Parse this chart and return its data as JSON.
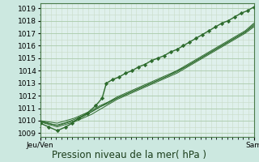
{
  "title": "Pression niveau de la mer( hPa )",
  "xlabel_left": "Jeu/Ven",
  "xlabel_right": "Sam",
  "ylabel_values": [
    1009,
    1010,
    1011,
    1012,
    1013,
    1014,
    1015,
    1016,
    1017,
    1018,
    1019
  ],
  "ylim": [
    1008.7,
    1019.4
  ],
  "xlim": [
    0,
    1
  ],
  "bg_outer": "#cce8e0",
  "bg_inner": "#dff0ec",
  "grid_major_color": "#aacaaa",
  "grid_minor_color": "#c8dcc8",
  "line_color": "#2d6b2d",
  "lines": [
    [
      0.0,
      1009.8,
      0.04,
      1009.5,
      0.08,
      1009.2,
      0.12,
      1009.5,
      0.15,
      1009.8,
      0.18,
      1010.2,
      0.22,
      1010.6,
      0.26,
      1011.2,
      0.29,
      1011.8,
      0.31,
      1013.0,
      0.34,
      1013.3,
      0.37,
      1013.5,
      0.4,
      1013.8,
      0.43,
      1014.0,
      0.46,
      1014.3,
      0.49,
      1014.5,
      0.52,
      1014.8,
      0.55,
      1015.0,
      0.58,
      1015.2,
      0.61,
      1015.5,
      0.64,
      1015.7,
      0.67,
      1016.0,
      0.7,
      1016.3,
      0.73,
      1016.6,
      0.76,
      1016.9,
      0.79,
      1017.2,
      0.82,
      1017.5,
      0.85,
      1017.8,
      0.88,
      1018.0,
      0.91,
      1018.3,
      0.94,
      1018.6,
      0.97,
      1018.8,
      1.0,
      1019.1
    ],
    [
      0.0,
      1010.0,
      0.04,
      1009.8,
      0.08,
      1009.6,
      0.12,
      1009.8,
      0.16,
      1010.0,
      0.2,
      1010.3,
      0.24,
      1010.7,
      0.28,
      1011.1,
      0.32,
      1011.5,
      0.36,
      1011.9,
      0.4,
      1012.2,
      0.44,
      1012.5,
      0.48,
      1012.8,
      0.52,
      1013.1,
      0.56,
      1013.4,
      0.6,
      1013.7,
      0.64,
      1014.0,
      0.68,
      1014.4,
      0.72,
      1014.8,
      0.76,
      1015.2,
      0.8,
      1015.6,
      0.84,
      1016.0,
      0.88,
      1016.4,
      0.92,
      1016.8,
      0.96,
      1017.2,
      1.0,
      1017.8
    ],
    [
      0.0,
      1009.9,
      0.04,
      1009.7,
      0.08,
      1009.5,
      0.12,
      1009.7,
      0.16,
      1009.9,
      0.2,
      1010.2,
      0.24,
      1010.5,
      0.28,
      1010.9,
      0.32,
      1011.3,
      0.36,
      1011.7,
      0.4,
      1012.0,
      0.44,
      1012.3,
      0.48,
      1012.6,
      0.52,
      1012.9,
      0.56,
      1013.2,
      0.6,
      1013.5,
      0.64,
      1013.8,
      0.68,
      1014.2,
      0.72,
      1014.6,
      0.76,
      1015.0,
      0.8,
      1015.4,
      0.84,
      1015.8,
      0.88,
      1016.2,
      0.92,
      1016.6,
      0.96,
      1017.0,
      1.0,
      1017.5
    ],
    [
      0.0,
      1010.0,
      0.04,
      1009.9,
      0.08,
      1009.8,
      0.12,
      1010.0,
      0.16,
      1010.2,
      0.2,
      1010.5,
      0.24,
      1010.8,
      0.28,
      1011.2,
      0.32,
      1011.5,
      0.36,
      1011.8,
      0.4,
      1012.1,
      0.44,
      1012.4,
      0.48,
      1012.7,
      0.52,
      1013.0,
      0.56,
      1013.3,
      0.6,
      1013.6,
      0.64,
      1013.9,
      0.68,
      1014.3,
      0.72,
      1014.7,
      0.76,
      1015.1,
      0.8,
      1015.5,
      0.84,
      1015.9,
      0.88,
      1016.3,
      0.92,
      1016.7,
      0.96,
      1017.1,
      1.0,
      1017.6
    ],
    [
      0.0,
      1009.95,
      0.04,
      1009.75,
      0.08,
      1009.65,
      0.12,
      1009.85,
      0.16,
      1010.1,
      0.2,
      1010.4,
      0.24,
      1010.7,
      0.28,
      1011.1,
      0.32,
      1011.4,
      0.36,
      1011.8,
      0.4,
      1012.1,
      0.44,
      1012.4,
      0.48,
      1012.7,
      0.52,
      1013.0,
      0.56,
      1013.3,
      0.6,
      1013.6,
      0.64,
      1014.0,
      0.68,
      1014.3,
      0.72,
      1014.7,
      0.76,
      1015.1,
      0.8,
      1015.5,
      0.84,
      1015.9,
      0.88,
      1016.3,
      0.92,
      1016.7,
      0.96,
      1017.1,
      1.0,
      1017.7
    ]
  ],
  "title_fontsize": 8.5,
  "tick_fontsize": 6.5
}
